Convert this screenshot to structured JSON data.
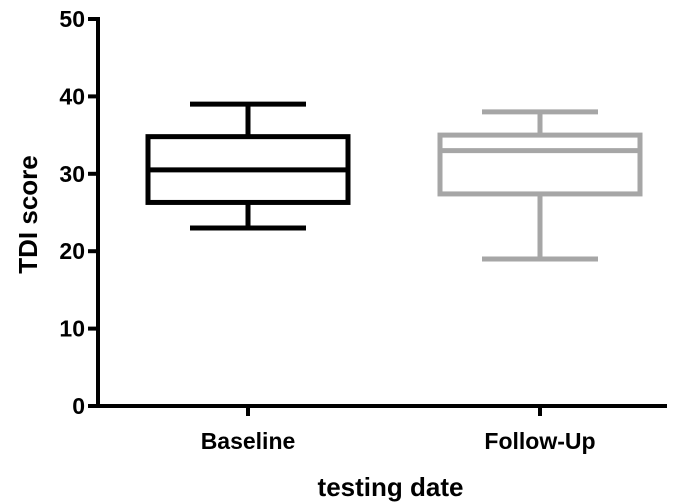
{
  "chart_data": {
    "type": "box",
    "title": "",
    "xlabel": "testing date",
    "ylabel": "TDI score",
    "ylim": [
      0,
      50
    ],
    "yticks": [
      0,
      10,
      20,
      30,
      40,
      50
    ],
    "yticks_labels": [
      "0",
      "10",
      "20",
      "30",
      "40",
      "50"
    ],
    "categories": [
      "Baseline",
      "Follow-Up"
    ],
    "boxes": [
      {
        "category": "Baseline",
        "min": 23,
        "q1": 26.3,
        "median": 30.5,
        "q3": 34.8,
        "max": 39,
        "color": "#000000"
      },
      {
        "category": "Follow-Up",
        "min": 19,
        "q1": 27.4,
        "median": 33,
        "q3": 35,
        "max": 38,
        "color": "#a6a6a6"
      }
    ],
    "grid": false,
    "legend": "none"
  }
}
